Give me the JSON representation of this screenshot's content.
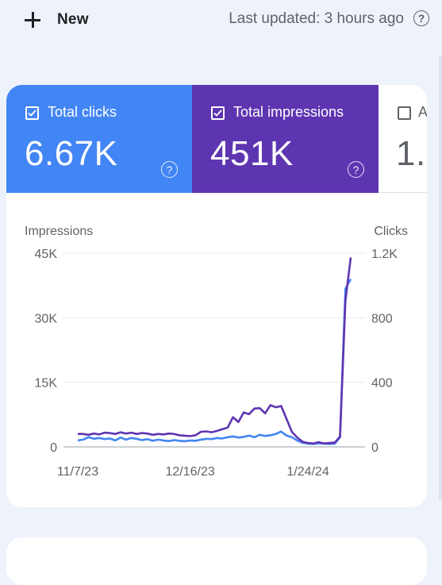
{
  "topbar": {
    "new_label": "New",
    "last_updated": "Last updated: 3 hours ago",
    "help_icon": "help-circle-icon"
  },
  "tiles": [
    {
      "label": "Total clicks",
      "value": "6.67K",
      "checked": true,
      "color": "#4285f4"
    },
    {
      "label": "Total impressions",
      "value": "451K",
      "checked": true,
      "color": "#5e35b1"
    },
    {
      "label": "A",
      "value": "1.",
      "checked": false,
      "color": "#ffffff"
    }
  ],
  "chart_data": {
    "type": "line",
    "ylabel_left": "Impressions",
    "ylabel_right": "Clicks",
    "y_left_ticks": [
      "0",
      "15K",
      "30K",
      "45K"
    ],
    "y_right_ticks": [
      "0",
      "400",
      "800",
      "1.2K"
    ],
    "y_left_range": [
      0,
      45000
    ],
    "y_right_range": [
      0,
      1200
    ],
    "x_ticks": [
      "11/7/23",
      "12/16/23",
      "1/24/24"
    ],
    "grid": true,
    "series": [
      {
        "name": "Impressions",
        "axis": "left",
        "color": "#5e35b1",
        "values": [
          3000,
          3000,
          2800,
          3100,
          2900,
          3300,
          3200,
          3000,
          3400,
          3100,
          3300,
          3000,
          3200,
          3100,
          2800,
          3000,
          2900,
          3100,
          3000,
          2700,
          2600,
          2500,
          2700,
          3500,
          3600,
          3400,
          3700,
          4100,
          4500,
          6900,
          5800,
          8000,
          7600,
          8900,
          9000,
          7800,
          9700,
          9200,
          9500,
          6500,
          3500,
          2200,
          1200,
          900,
          800,
          1100,
          800,
          900,
          1000,
          2400,
          34000,
          44000
        ]
      },
      {
        "name": "Clicks",
        "axis": "right",
        "color": "#4285f4",
        "values": [
          40,
          45,
          60,
          50,
          55,
          48,
          52,
          40,
          58,
          45,
          55,
          50,
          42,
          48,
          38,
          45,
          40,
          36,
          42,
          38,
          35,
          40,
          38,
          45,
          50,
          48,
          55,
          52,
          60,
          65,
          58,
          62,
          70,
          60,
          75,
          68,
          72,
          80,
          95,
          70,
          60,
          40,
          25,
          20,
          18,
          22,
          20,
          18,
          20,
          60,
          980,
          1040
        ]
      }
    ]
  }
}
